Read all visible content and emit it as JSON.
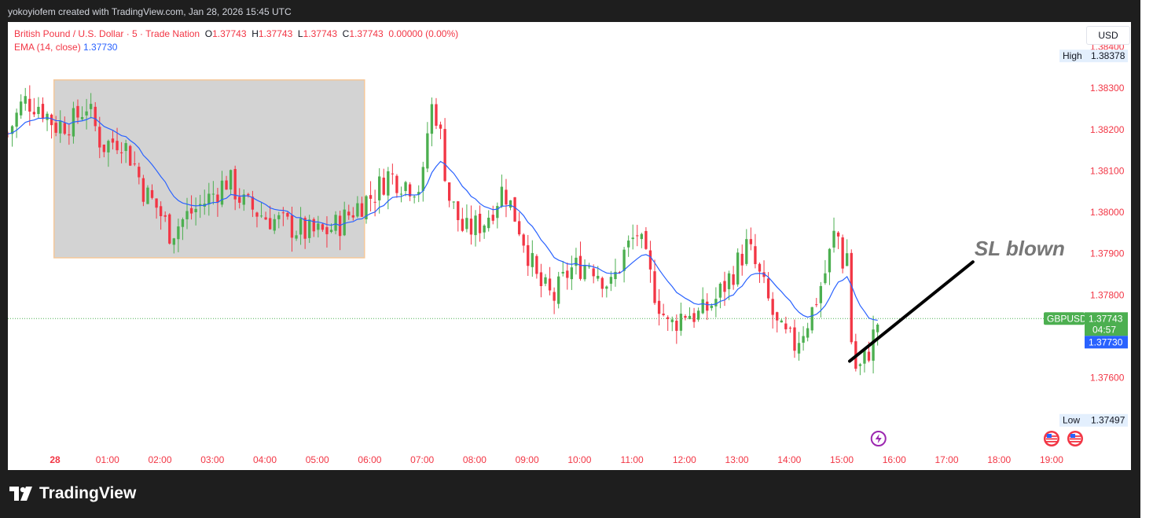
{
  "header": {
    "title": "yokoyiofem created with TradingView.com, Jan 28, 2026 15:45 UTC"
  },
  "legend": {
    "symbol": "British Pound / U.S. Dollar · 5 · Trade Nation",
    "open_label": "O",
    "open": "1.37743",
    "high_label": "H",
    "high": "1.37743",
    "low_label": "L",
    "low": "1.37743",
    "close_label": "C",
    "close": "1.37743",
    "change": "0.00000 (0.00%)",
    "ema_label": "EMA (14, close)",
    "ema_value": "1.37730"
  },
  "currency": "USD",
  "brand": "TradingView",
  "colors": {
    "up": "#4caf50",
    "down": "#f23645",
    "ema": "#2962ff",
    "axis_text": "#f23645",
    "box_fill": "#d3d3d3",
    "box_stroke": "#f5c89a"
  },
  "chart_data": {
    "type": "candlestick",
    "symbol": "GBPUSD",
    "ylim": [
      1.3743,
      1.3846
    ],
    "y_ticks": [
      1.384,
      1.383,
      1.382,
      1.381,
      1.38,
      1.379,
      1.378,
      1.376
    ],
    "y_tick_labels": [
      "1.38400",
      "1.38300",
      "1.38200",
      "1.38100",
      "1.38000",
      "1.37900",
      "1.37800",
      "1.37600"
    ],
    "x_ticks": [
      0,
      1,
      2,
      3,
      4,
      5,
      6,
      7,
      8,
      9,
      10,
      11,
      12,
      13,
      14,
      15,
      16,
      17,
      18,
      19
    ],
    "x_tick_labels": [
      "28",
      "01:00",
      "02:00",
      "03:00",
      "04:00",
      "05:00",
      "06:00",
      "07:00",
      "08:00",
      "09:00",
      "10:00",
      "11:00",
      "12:00",
      "13:00",
      "14:00",
      "15:00",
      "16:00",
      "17:00",
      "18:00",
      "19:00"
    ],
    "x_range_hours": [
      -0.9,
      19.6
    ],
    "high_marker": {
      "label": "High",
      "value": "1.38378"
    },
    "low_marker": {
      "label": "Low",
      "value": "1.37497"
    },
    "last_price": {
      "symbol": "GBPUSD",
      "value": "1.37743",
      "countdown": "04:57"
    },
    "ema_marker": {
      "value": "1.37730"
    },
    "annotation": {
      "text": "SL blown",
      "from": [
        15.15,
        1.3764
      ],
      "to": [
        17.5,
        1.3788
      ]
    },
    "highlight_box": {
      "x0": -0.02,
      "x1": 5.9,
      "y0": 1.3789,
      "y1": 1.3832
    },
    "event_icons": [
      {
        "type": "lightning-icon",
        "x": 15.7
      },
      {
        "type": "us-flag-icon",
        "x": 19.0
      },
      {
        "type": "us-flag-icon",
        "x": 19.45
      }
    ],
    "anchors": [
      [
        -0.9,
        1.3819
      ],
      [
        -0.6,
        1.3827
      ],
      [
        -0.3,
        1.3826
      ],
      [
        0.0,
        1.3821
      ],
      [
        0.35,
        1.3822
      ],
      [
        0.6,
        1.3826
      ],
      [
        0.9,
        1.3816
      ],
      [
        1.25,
        1.3818
      ],
      [
        1.5,
        1.3812
      ],
      [
        1.7,
        1.3805
      ],
      [
        1.95,
        1.3801
      ],
      [
        2.2,
        1.3795
      ],
      [
        2.5,
        1.3799
      ],
      [
        2.9,
        1.3803
      ],
      [
        3.3,
        1.3808
      ],
      [
        3.6,
        1.3802
      ],
      [
        4.0,
        1.3799
      ],
      [
        4.4,
        1.3797
      ],
      [
        4.8,
        1.3795
      ],
      [
        5.1,
        1.3795
      ],
      [
        5.4,
        1.3797
      ],
      [
        5.8,
        1.3802
      ],
      [
        6.05,
        1.3804
      ],
      [
        6.35,
        1.3809
      ],
      [
        6.7,
        1.3807
      ],
      [
        7.0,
        1.3806
      ],
      [
        7.15,
        1.3826
      ],
      [
        7.3,
        1.3823
      ],
      [
        7.5,
        1.3804
      ],
      [
        7.8,
        1.3795
      ],
      [
        8.2,
        1.3798
      ],
      [
        8.55,
        1.3806
      ],
      [
        8.9,
        1.3795
      ],
      [
        9.2,
        1.3783
      ],
      [
        9.5,
        1.3779
      ],
      [
        9.8,
        1.3786
      ],
      [
        10.2,
        1.3788
      ],
      [
        10.6,
        1.3782
      ],
      [
        10.85,
        1.379
      ],
      [
        11.1,
        1.3795
      ],
      [
        11.4,
        1.3782
      ],
      [
        11.7,
        1.3772
      ],
      [
        12.0,
        1.3776
      ],
      [
        12.3,
        1.3775
      ],
      [
        12.6,
        1.3779
      ],
      [
        12.9,
        1.3785
      ],
      [
        13.2,
        1.3792
      ],
      [
        13.5,
        1.3782
      ],
      [
        13.8,
        1.3771
      ],
      [
        14.1,
        1.3768
      ],
      [
        14.4,
        1.3775
      ],
      [
        14.7,
        1.3786
      ],
      [
        14.9,
        1.3797
      ],
      [
        15.0,
        1.3788
      ],
      [
        15.1,
        1.379
      ],
      [
        15.2,
        1.3765
      ],
      [
        15.3,
        1.3761
      ],
      [
        15.5,
        1.3766
      ],
      [
        15.7,
        1.3774
      ]
    ]
  }
}
